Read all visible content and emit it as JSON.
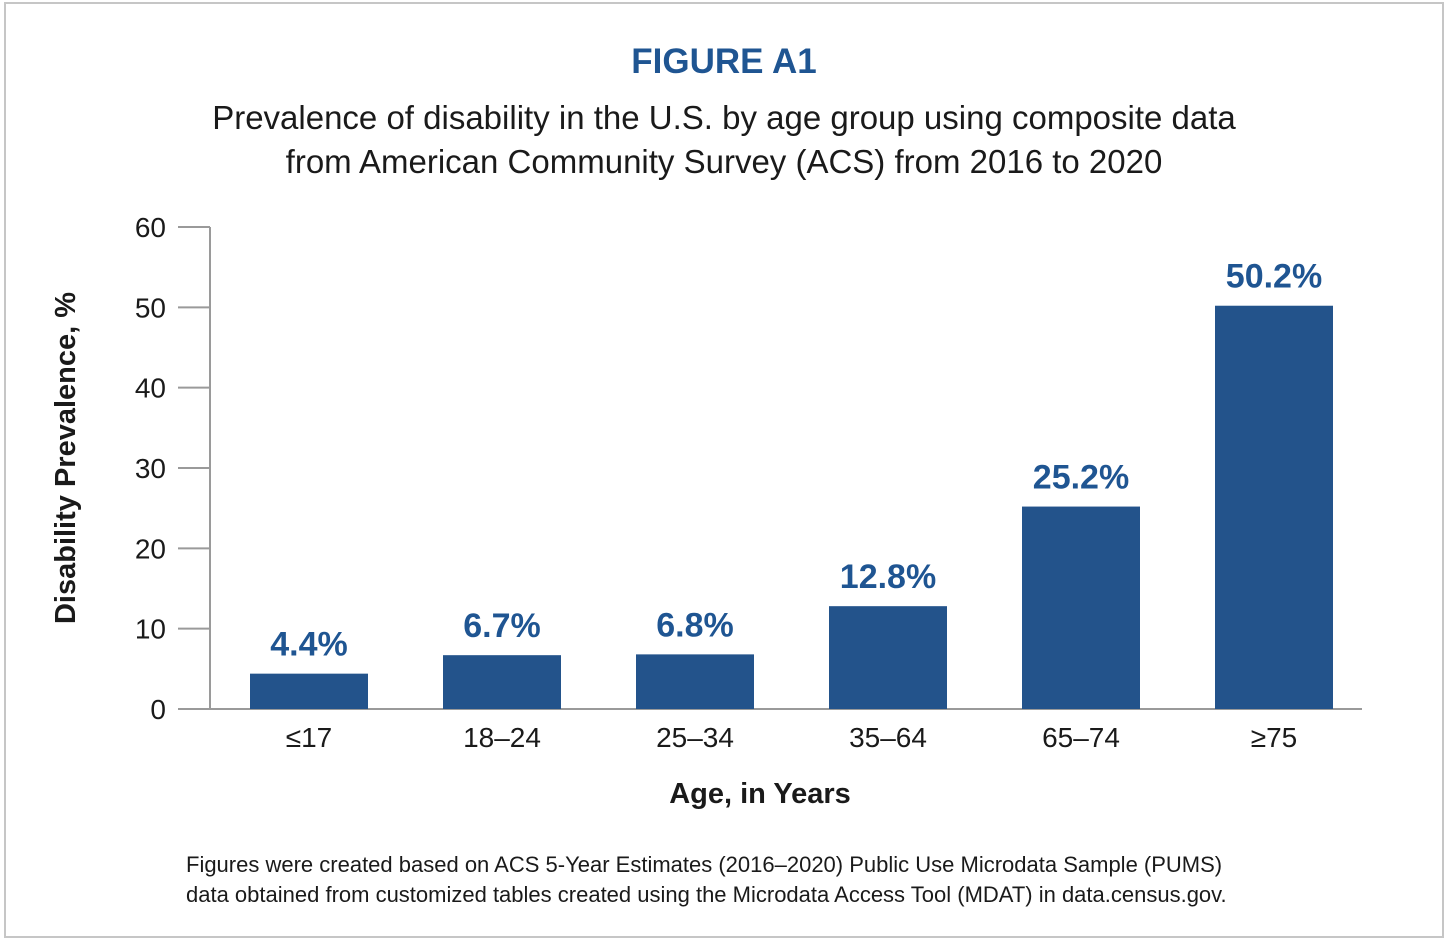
{
  "figure_label": "FIGURE A1",
  "note_lines": [
    "Figures were created based on ACS 5-Year Estimates (2016–2020) Public Use Microdata Sample (PUMS)",
    "data obtained from customized tables created using the Microdata Access Tool (MDAT) in data.census.gov."
  ],
  "colors": {
    "bar": "#23538b",
    "accent": "#1f5592",
    "axis": "#9a9a9a"
  },
  "chart_data": {
    "type": "bar",
    "title": "Prevalence of disability in the U.S. by age group using composite data from American Community Survey (ACS) from 2016 to 2020",
    "title_lines": [
      "Prevalence of disability in the U.S. by age group using composite data",
      "from American Community Survey (ACS) from 2016 to 2020"
    ],
    "xlabel": "Age, in Years",
    "ylabel": "Disability Prevalence, %",
    "categories": [
      "≤17",
      "18–24",
      "25–34",
      "35–64",
      "65–74",
      "≥75"
    ],
    "values": [
      4.4,
      6.7,
      6.8,
      12.8,
      25.2,
      50.2
    ],
    "data_labels": [
      "4.4%",
      "6.7%",
      "6.8%",
      "12.8%",
      "25.2%",
      "50.2%"
    ],
    "ylim": [
      0,
      60
    ],
    "yticks": [
      0,
      10,
      20,
      30,
      40,
      50,
      60
    ],
    "grid": false,
    "legend": "none"
  }
}
